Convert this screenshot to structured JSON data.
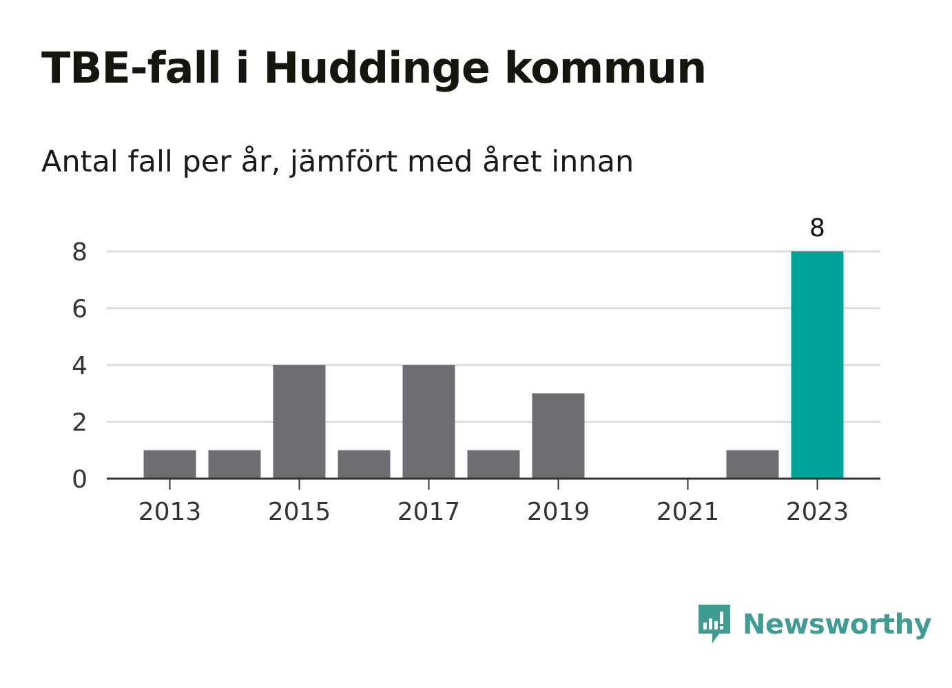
{
  "title": "TBE-fall i Huddinge kommun",
  "subtitle": "Antal fall per år, jämfört med året innan",
  "brand": {
    "name": "Newsworthy",
    "color": "#3f9c93",
    "icon": "newsworthy-logo-icon"
  },
  "colors": {
    "bar": "#6e6d72",
    "highlight": "#00a398",
    "grid": "#dddddd",
    "axis": "#333333",
    "text": "#333333"
  },
  "chart_data": {
    "type": "bar",
    "categories": [
      "2013",
      "2014",
      "2015",
      "2016",
      "2017",
      "2018",
      "2019",
      "2020",
      "2021",
      "2022",
      "2023"
    ],
    "values": [
      1,
      1,
      4,
      1,
      4,
      1,
      3,
      0,
      0,
      1,
      8
    ],
    "x_tick_labels": [
      "2013",
      "2015",
      "2017",
      "2019",
      "2021",
      "2023"
    ],
    "y_ticks": [
      "0",
      "2",
      "4",
      "6",
      "8"
    ],
    "ylim": [
      0,
      8
    ],
    "highlight_category": "2023",
    "data_labels": [
      {
        "category": "2023",
        "text": "8"
      }
    ],
    "grid": true,
    "legend": "none"
  }
}
